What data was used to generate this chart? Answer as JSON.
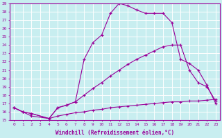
{
  "xlabel": "Windchill (Refroidissement éolien,°C)",
  "ylabel": "",
  "xlim": [
    -0.5,
    23.5
  ],
  "ylim": [
    15,
    29
  ],
  "xticks": [
    0,
    1,
    2,
    3,
    4,
    5,
    6,
    7,
    8,
    9,
    10,
    11,
    12,
    13,
    14,
    15,
    16,
    17,
    18,
    19,
    20,
    21,
    22,
    23
  ],
  "yticks": [
    15,
    16,
    17,
    18,
    19,
    20,
    21,
    22,
    23,
    24,
    25,
    26,
    27,
    28,
    29
  ],
  "bg_color": "#c8eef0",
  "line_color": "#990099",
  "grid_color": "#ffffff",
  "line1_x": [
    0,
    1,
    2,
    4,
    5,
    6,
    7,
    8,
    9,
    10,
    11,
    12,
    13,
    14,
    15,
    16,
    17,
    18,
    19,
    20,
    21,
    22,
    23
  ],
  "line1_y": [
    16.5,
    16.0,
    15.8,
    15.2,
    16.5,
    16.8,
    17.2,
    22.3,
    24.3,
    25.2,
    27.8,
    29.0,
    28.7,
    28.2,
    27.8,
    27.8,
    27.8,
    26.7,
    22.3,
    21.8,
    21.0,
    19.2,
    17.0
  ],
  "line2_x": [
    0,
    1,
    2,
    4,
    5,
    6,
    7,
    8,
    9,
    10,
    11,
    12,
    13,
    14,
    15,
    16,
    17,
    18,
    19,
    20,
    21,
    22,
    23
  ],
  "line2_y": [
    16.5,
    16.0,
    15.8,
    15.2,
    16.5,
    16.8,
    17.2,
    18.0,
    18.8,
    19.5,
    20.3,
    21.0,
    21.7,
    22.3,
    22.8,
    23.3,
    23.8,
    24.0,
    24.0,
    21.0,
    19.5,
    19.0,
    17.3
  ],
  "line3_x": [
    0,
    1,
    2,
    4,
    5,
    6,
    7,
    8,
    9,
    10,
    11,
    12,
    13,
    14,
    15,
    16,
    17,
    18,
    19,
    20,
    21,
    22,
    23
  ],
  "line3_y": [
    16.5,
    16.0,
    15.5,
    15.2,
    15.5,
    15.7,
    15.9,
    16.0,
    16.2,
    16.3,
    16.5,
    16.6,
    16.7,
    16.8,
    16.9,
    17.0,
    17.1,
    17.2,
    17.2,
    17.3,
    17.3,
    17.4,
    17.5
  ]
}
